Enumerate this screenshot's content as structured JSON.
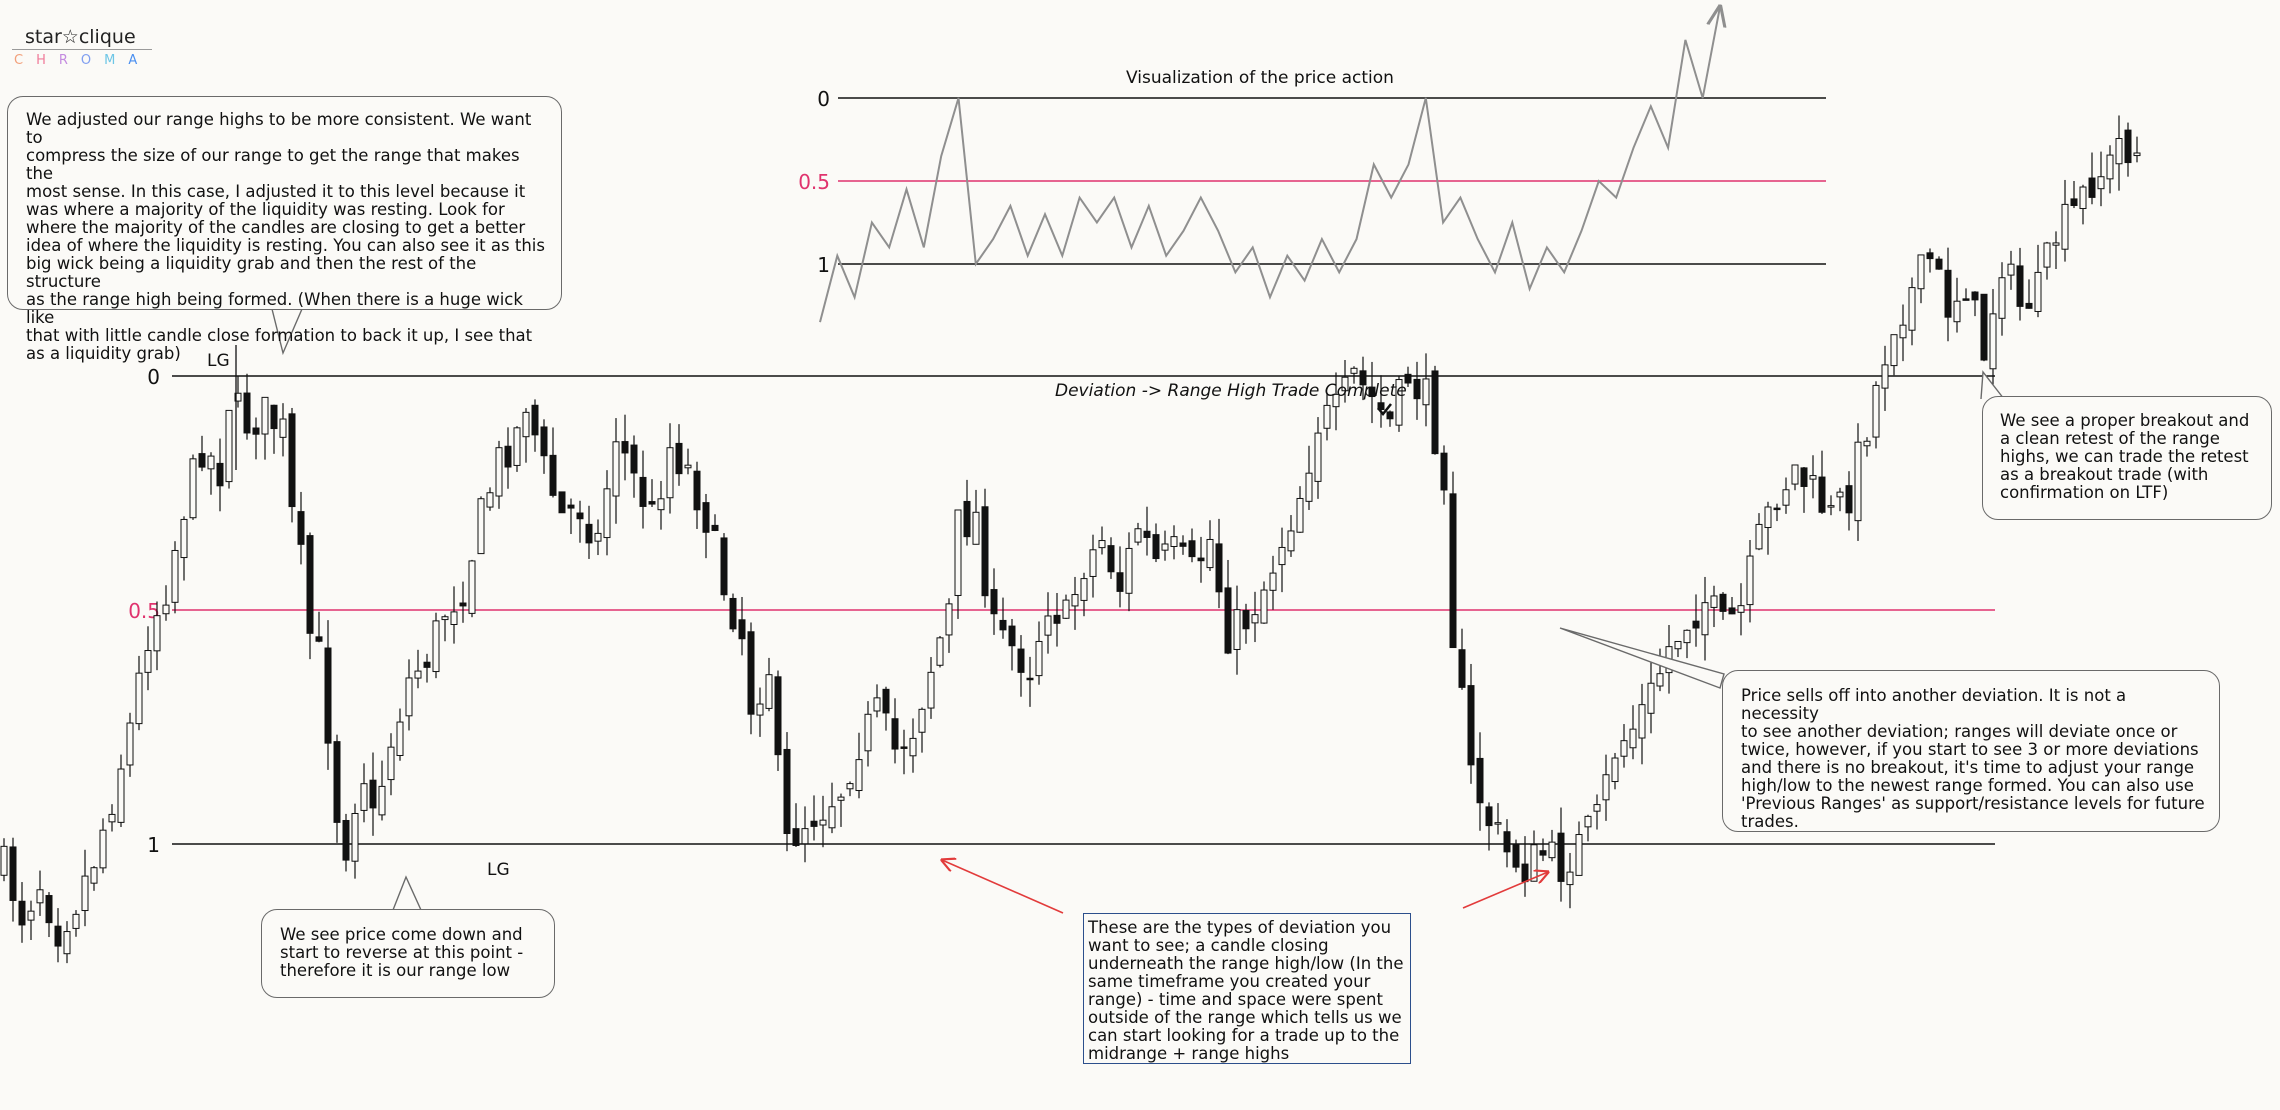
{
  "logo": {
    "top_text": "star☆clique",
    "bottom_text": "CHROMA"
  },
  "annotations": {
    "range_highs_note": "We adjusted our range highs to be more consistent. We want to\ncompress the size of our range to get the range that makes the\nmost sense. In this case, I adjusted it to this level because it\nwas where a majority of the liquidity was resting. Look for\nwhere the majority of the candles are closing to get a better\nidea of where the liquidity is resting. You can also see it as this\nbig wick being a liquidity grab and then the rest of the structure\nas the range high being formed. (When there is a huge wick like\nthat with little candle close formation to back it up, I see that\nas a liquidity grab)",
    "range_low_note": "We see price come down and\nstart to reverse at this point -\ntherefore it is our range low",
    "deviation_note": "These are the types of deviation you\nwant to see; a candle closing\nunderneath the range high/low (In the\nsame timeframe you created your\nrange) - time and space were spent\noutside of the range which tells us we\ncan start looking for a trade up to the\nmidrange + range highs",
    "sell_off_note": "Price sells off into another deviation. It is not a necessity\nto see another deviation; ranges will deviate once or\ntwice, however, if you start to see 3 or more deviations\nand there is no breakout, it's time to adjust your range\nhigh/low to the newest range formed. You can also use\n'Previous Ranges' as support/resistance levels for future\ntrades.",
    "breakout_note": "We see a proper breakout and\na clean retest of the range\nhighs, we can trade the retest\nas a breakout trade (with\nconfirmation on LTF)",
    "deviation_trade": "Deviation -> Range High Trade Complete",
    "lg_top": "LG",
    "lg_bottom": "LG"
  },
  "colors": {
    "mid_line": "#e0336e",
    "level_line": "#111111",
    "candle": "#111111",
    "inset_line": "#8f8f8f",
    "arrow": "#e23b3b",
    "box_border": "#2c4f8c"
  },
  "chart_data": [
    {
      "type": "candlestick",
      "title": "",
      "levels": [
        {
          "label": "0",
          "value": 0,
          "color": "#111111"
        },
        {
          "label": "0.5",
          "value": 0.5,
          "color": "#e0336e"
        },
        {
          "label": "1",
          "value": 1,
          "color": "#111111"
        }
      ],
      "close_path": [
        [
          0,
          1.05
        ],
        [
          2,
          1.15
        ],
        [
          4,
          1.08
        ],
        [
          6,
          1.18
        ],
        [
          8,
          1.12
        ],
        [
          10,
          1.03
        ],
        [
          12,
          0.9
        ],
        [
          14,
          0.75
        ],
        [
          16,
          0.55
        ],
        [
          18,
          0.45
        ],
        [
          20,
          0.28
        ],
        [
          22,
          0.15
        ],
        [
          24,
          0.2
        ],
        [
          25,
          0.05
        ],
        [
          27,
          0.1
        ],
        [
          29,
          0.08
        ],
        [
          31,
          0.12
        ],
        [
          32,
          0.3
        ],
        [
          33,
          0.4
        ],
        [
          34,
          0.55
        ],
        [
          35,
          0.6
        ],
        [
          36,
          0.75
        ],
        [
          37,
          0.93
        ],
        [
          38,
          1.0
        ],
        [
          39,
          0.9
        ],
        [
          40,
          0.85
        ],
        [
          41,
          0.95
        ],
        [
          43,
          0.78
        ],
        [
          45,
          0.65
        ],
        [
          47,
          0.6
        ],
        [
          49,
          0.5
        ],
        [
          51,
          0.45
        ],
        [
          53,
          0.3
        ],
        [
          55,
          0.18
        ],
        [
          57,
          0.12
        ],
        [
          58,
          0.05
        ],
        [
          60,
          0.2
        ],
        [
          62,
          0.3
        ],
        [
          64,
          0.28
        ],
        [
          66,
          0.35
        ],
        [
          68,
          0.12
        ],
        [
          70,
          0.22
        ],
        [
          72,
          0.3
        ],
        [
          74,
          0.15
        ],
        [
          76,
          0.2
        ],
        [
          78,
          0.3
        ],
        [
          80,
          0.45
        ],
        [
          82,
          0.55
        ],
        [
          83,
          0.7
        ],
        [
          85,
          0.62
        ],
        [
          86,
          0.85
        ],
        [
          87,
          1.0
        ],
        [
          89,
          0.95
        ],
        [
          91,
          0.92
        ],
        [
          93,
          0.88
        ],
        [
          95,
          0.78
        ],
        [
          97,
          0.72
        ],
        [
          99,
          0.8
        ],
        [
          101,
          0.75
        ],
        [
          103,
          0.62
        ],
        [
          105,
          0.5
        ],
        [
          106,
          0.32
        ],
        [
          108,
          0.3
        ],
        [
          110,
          0.55
        ],
        [
          112,
          0.58
        ],
        [
          114,
          0.62
        ],
        [
          116,
          0.48
        ],
        [
          118,
          0.52
        ],
        [
          120,
          0.4
        ],
        [
          122,
          0.35
        ],
        [
          124,
          0.45
        ],
        [
          126,
          0.32
        ],
        [
          128,
          0.4
        ],
        [
          130,
          0.38
        ],
        [
          132,
          0.42
        ],
        [
          134,
          0.35
        ],
        [
          136,
          0.55
        ],
        [
          138,
          0.52
        ],
        [
          140,
          0.45
        ],
        [
          142,
          0.35
        ],
        [
          144,
          0.25
        ],
        [
          146,
          0.1
        ],
        [
          148,
          0.08
        ],
        [
          150,
          0.0
        ],
        [
          152,
          0.05
        ],
        [
          154,
          0.1
        ],
        [
          156,
          0.0
        ],
        [
          158,
          0.05
        ],
        [
          160,
          0.2
        ],
        [
          161,
          0.55
        ],
        [
          162,
          0.7
        ],
        [
          163,
          0.85
        ],
        [
          165,
          0.95
        ],
        [
          167,
          1.02
        ],
        [
          169,
          1.05
        ],
        [
          171,
          1.02
        ],
        [
          173,
          1.05
        ],
        [
          175,
          1.0
        ],
        [
          177,
          0.95
        ],
        [
          179,
          0.8
        ],
        [
          181,
          0.75
        ],
        [
          183,
          0.68
        ],
        [
          185,
          0.58
        ],
        [
          187,
          0.52
        ],
        [
          189,
          0.48
        ],
        [
          191,
          0.54
        ],
        [
          193,
          0.5
        ],
        [
          195,
          0.35
        ],
        [
          197,
          0.25
        ],
        [
          199,
          0.2
        ],
        [
          201,
          0.25
        ],
        [
          203,
          0.3
        ],
        [
          205,
          0.25
        ],
        [
          207,
          0.1
        ],
        [
          209,
          -0.05
        ],
        [
          210,
          -0.12
        ],
        [
          212,
          -0.18
        ],
        [
          214,
          -0.25
        ],
        [
          216,
          -0.15
        ],
        [
          218,
          -0.2
        ],
        [
          220,
          -0.05
        ],
        [
          222,
          -0.25
        ],
        [
          224,
          -0.15
        ],
        [
          226,
          -0.18
        ],
        [
          228,
          -0.3
        ],
        [
          230,
          -0.35
        ],
        [
          232,
          -0.42
        ],
        [
          234,
          -0.45
        ],
        [
          235,
          -0.5
        ],
        [
          237,
          -0.48
        ]
      ]
    },
    {
      "type": "line",
      "title": "Visualization of the price action",
      "y_labels": [
        "0",
        "0.5",
        "1"
      ],
      "ylim": [
        1.35,
        -0.55
      ],
      "values": [
        1.35,
        0.95,
        1.2,
        0.75,
        0.9,
        0.55,
        0.9,
        0.35,
        0.0,
        1.0,
        0.85,
        0.65,
        0.95,
        0.7,
        0.95,
        0.6,
        0.75,
        0.6,
        0.9,
        0.65,
        0.95,
        0.8,
        0.6,
        0.8,
        1.05,
        0.9,
        1.2,
        0.95,
        1.1,
        0.85,
        1.05,
        0.85,
        0.4,
        0.6,
        0.4,
        0.0,
        0.75,
        0.6,
        0.85,
        1.05,
        0.75,
        1.15,
        0.9,
        1.05,
        0.8,
        0.5,
        0.6,
        0.3,
        0.05,
        0.3,
        -0.35,
        0.0,
        -0.55
      ]
    }
  ]
}
